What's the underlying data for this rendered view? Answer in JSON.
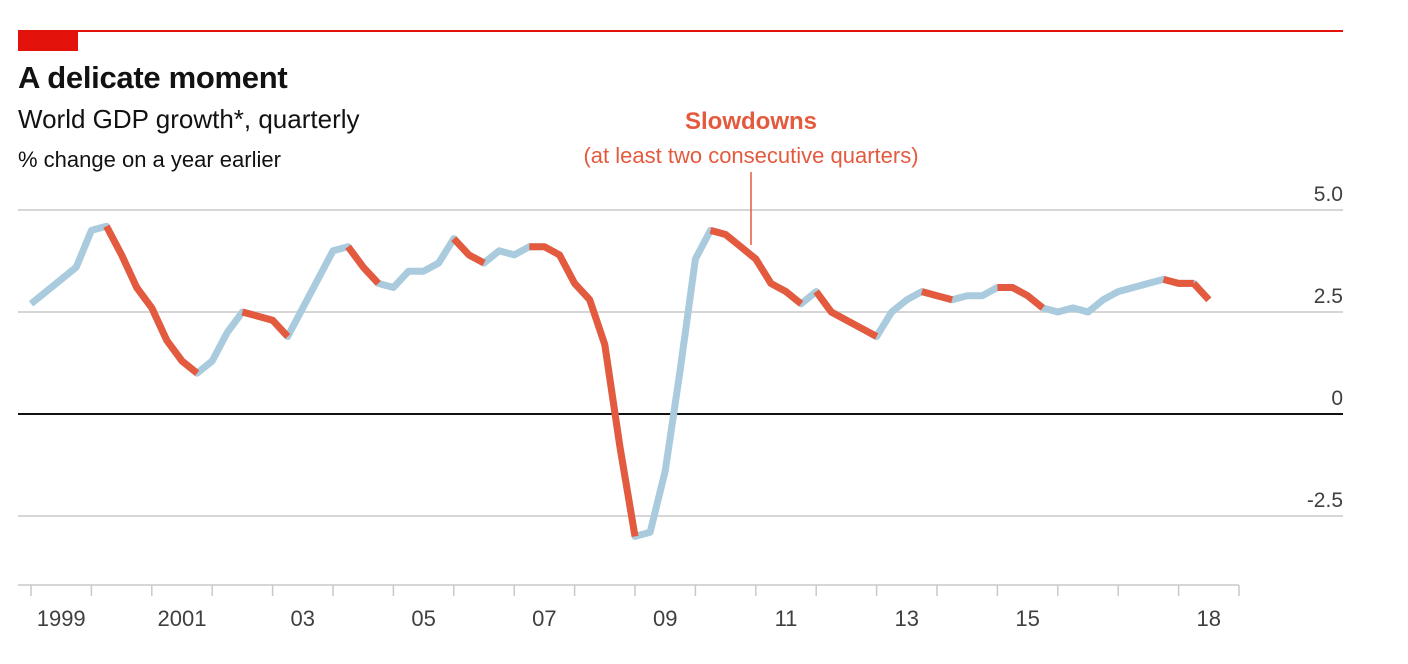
{
  "header": {
    "title": "A delicate moment",
    "subtitle": "World GDP growth*, quarterly",
    "unit": "% change on a year earlier"
  },
  "annotation": {
    "title": "Slowdowns",
    "subtitle": "(at least two consecutive quarters)"
  },
  "colors": {
    "accent": "#e3120b",
    "slowdown": "#e45a3e",
    "growth": "#a9cbdd",
    "grid": "#c9c9c9",
    "zero": "#121212",
    "text": "#121212",
    "axis_text": "#3f3f3f"
  },
  "chart_data": {
    "type": "line",
    "title": "A delicate moment",
    "subtitle": "World GDP growth*, quarterly",
    "ylabel": "% change on a year earlier",
    "ylim": [
      -4.2,
      5.0
    ],
    "y_ticks": [
      5.0,
      2.5,
      0,
      -2.5
    ],
    "y_tick_labels": [
      "5.0",
      "2.5",
      "0",
      "-2.5"
    ],
    "x_range": [
      1999.0,
      2019.0
    ],
    "x_tick_labels": [
      {
        "x": 1999,
        "label": "1999"
      },
      {
        "x": 2001,
        "label": "2001"
      },
      {
        "x": 2003,
        "label": "03"
      },
      {
        "x": 2005,
        "label": "05"
      },
      {
        "x": 2007,
        "label": "07"
      },
      {
        "x": 2009,
        "label": "09"
      },
      {
        "x": 2011,
        "label": "11"
      },
      {
        "x": 2013,
        "label": "13"
      },
      {
        "x": 2015,
        "label": "15"
      },
      {
        "x": 2018,
        "label": "18"
      }
    ],
    "x_minor_ticks": [
      1999,
      2000,
      2001,
      2002,
      2003,
      2004,
      2005,
      2006,
      2007,
      2008,
      2009,
      2010,
      2011,
      2012,
      2013,
      2014,
      2015,
      2016,
      2017,
      2018,
      2019
    ],
    "series": [
      {
        "x": [
          "1999Q1",
          "1999Q2",
          "1999Q3",
          "1999Q4",
          "2000Q1",
          "2000Q2",
          "2000Q3",
          "2000Q4",
          "2001Q1",
          "2001Q2",
          "2001Q3",
          "2001Q4",
          "2002Q1",
          "2002Q2",
          "2002Q3",
          "2002Q4",
          "2003Q1",
          "2003Q2",
          "2003Q3",
          "2003Q4",
          "2004Q1",
          "2004Q2",
          "2004Q3",
          "2004Q4",
          "2005Q1",
          "2005Q2",
          "2005Q3",
          "2005Q4",
          "2006Q1",
          "2006Q2",
          "2006Q3",
          "2006Q4",
          "2007Q1",
          "2007Q2",
          "2007Q3",
          "2007Q4",
          "2008Q1",
          "2008Q2",
          "2008Q3",
          "2008Q4",
          "2009Q1",
          "2009Q2",
          "2009Q3",
          "2009Q4",
          "2010Q1",
          "2010Q2",
          "2010Q3",
          "2010Q4",
          "2011Q1",
          "2011Q2",
          "2011Q3",
          "2011Q4",
          "2012Q1",
          "2012Q2",
          "2012Q3",
          "2012Q4",
          "2013Q1",
          "2013Q2",
          "2013Q3",
          "2013Q4",
          "2014Q1",
          "2014Q2",
          "2014Q3",
          "2014Q4",
          "2015Q1",
          "2015Q2",
          "2015Q3",
          "2015Q4",
          "2016Q1",
          "2016Q2",
          "2016Q3",
          "2016Q4",
          "2017Q1",
          "2017Q2",
          "2017Q3",
          "2017Q4",
          "2018Q1",
          "2018Q2",
          "2018Q3"
        ],
        "values": [
          2.7,
          3.0,
          3.3,
          3.6,
          4.5,
          4.6,
          3.9,
          3.1,
          2.6,
          1.8,
          1.3,
          1.0,
          1.3,
          2.0,
          2.5,
          2.4,
          2.3,
          1.9,
          2.6,
          3.3,
          4.0,
          4.1,
          3.6,
          3.2,
          3.1,
          3.5,
          3.5,
          3.7,
          4.3,
          3.9,
          3.7,
          4.0,
          3.9,
          4.1,
          4.1,
          3.9,
          3.2,
          2.8,
          1.7,
          -0.8,
          -3.0,
          -2.9,
          -1.4,
          1.1,
          3.8,
          4.5,
          4.4,
          4.1,
          3.8,
          3.2,
          3.0,
          2.7,
          3.0,
          2.5,
          2.3,
          2.1,
          1.9,
          2.5,
          2.8,
          3.0,
          2.9,
          2.8,
          2.9,
          2.9,
          3.1,
          3.1,
          2.9,
          2.6,
          2.5,
          2.6,
          2.5,
          2.8,
          3.0,
          3.1,
          3.2,
          3.3,
          3.2,
          3.2,
          2.8
        ],
        "slowdown_segments": [
          [
            5,
            11
          ],
          [
            14,
            17
          ],
          [
            21,
            23
          ],
          [
            28,
            30
          ],
          [
            33,
            40
          ],
          [
            45,
            51
          ],
          [
            52,
            56
          ],
          [
            59,
            61
          ],
          [
            64,
            67
          ],
          [
            75,
            77
          ],
          [
            77,
            78
          ]
        ]
      }
    ]
  }
}
